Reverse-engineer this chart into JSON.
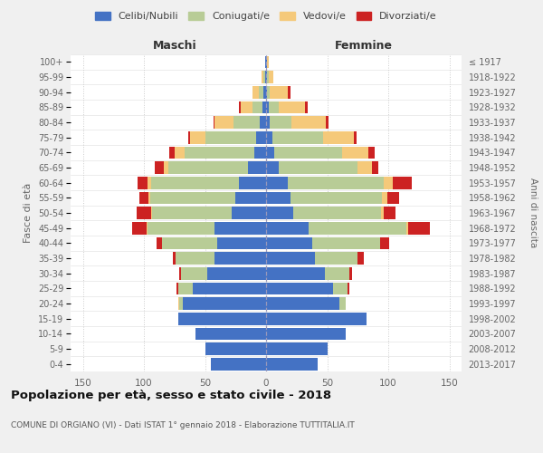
{
  "age_groups": [
    "0-4",
    "5-9",
    "10-14",
    "15-19",
    "20-24",
    "25-29",
    "30-34",
    "35-39",
    "40-44",
    "45-49",
    "50-54",
    "55-59",
    "60-64",
    "65-69",
    "70-74",
    "75-79",
    "80-84",
    "85-89",
    "90-94",
    "95-99",
    "100+"
  ],
  "birth_years": [
    "2013-2017",
    "2008-2012",
    "2003-2007",
    "1998-2002",
    "1993-1997",
    "1988-1992",
    "1983-1987",
    "1978-1982",
    "1973-1977",
    "1968-1972",
    "1963-1967",
    "1958-1962",
    "1953-1957",
    "1948-1952",
    "1943-1947",
    "1938-1942",
    "1933-1937",
    "1928-1932",
    "1923-1927",
    "1918-1922",
    "≤ 1917"
  ],
  "colors": {
    "celibi": "#4472c4",
    "coniugati": "#b8cc96",
    "vedovi": "#f5c97a",
    "divorziati": "#cc2222"
  },
  "maschi": {
    "celibi": [
      45,
      50,
      58,
      72,
      68,
      60,
      48,
      42,
      40,
      42,
      28,
      25,
      22,
      15,
      10,
      8,
      5,
      3,
      2,
      1,
      1
    ],
    "coniugati": [
      0,
      0,
      0,
      0,
      3,
      12,
      22,
      32,
      45,
      55,
      65,
      70,
      72,
      65,
      57,
      42,
      22,
      8,
      4,
      1,
      0
    ],
    "vedovi": [
      0,
      0,
      0,
      0,
      1,
      0,
      0,
      0,
      0,
      1,
      1,
      1,
      3,
      4,
      8,
      12,
      15,
      10,
      5,
      2,
      0
    ],
    "divorziati": [
      0,
      0,
      0,
      0,
      0,
      1,
      1,
      2,
      5,
      12,
      12,
      8,
      8,
      7,
      4,
      2,
      1,
      1,
      0,
      0,
      0
    ]
  },
  "femmine": {
    "celibi": [
      42,
      50,
      65,
      82,
      60,
      55,
      48,
      40,
      38,
      35,
      22,
      20,
      18,
      10,
      7,
      5,
      3,
      2,
      1,
      1,
      1
    ],
    "coniugati": [
      0,
      0,
      0,
      0,
      5,
      12,
      20,
      35,
      55,
      80,
      72,
      75,
      78,
      65,
      55,
      42,
      18,
      8,
      2,
      1,
      0
    ],
    "vedovi": [
      0,
      0,
      0,
      0,
      0,
      0,
      0,
      0,
      0,
      1,
      2,
      4,
      8,
      12,
      22,
      25,
      28,
      22,
      15,
      4,
      1
    ],
    "divorziati": [
      0,
      0,
      0,
      0,
      0,
      1,
      2,
      5,
      8,
      18,
      10,
      10,
      15,
      5,
      5,
      2,
      2,
      2,
      2,
      0,
      0
    ]
  },
  "title": "Popolazione per età, sesso e stato civile - 2018",
  "subtitle": "COMUNE DI ORGIANO (VI) - Dati ISTAT 1° gennaio 2018 - Elaborazione TUTTITALIA.IT",
  "xlabel_left": "Maschi",
  "xlabel_right": "Femmine",
  "ylabel": "Fasce di età",
  "ylabel_right": "Anni di nascita",
  "xlim": 160,
  "bg_color": "#f0f0f0",
  "plot_bg": "#ffffff",
  "grid_color": "#cccccc"
}
